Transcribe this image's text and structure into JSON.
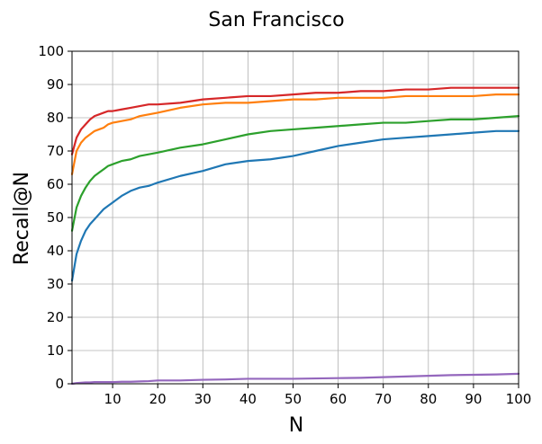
{
  "chart_data": {
    "type": "line",
    "title": "San Francisco",
    "xlabel": "N",
    "ylabel": "Recall@N",
    "xlim": [
      1,
      100
    ],
    "ylim": [
      0,
      100
    ],
    "xticks": [
      10,
      20,
      30,
      40,
      50,
      60,
      70,
      80,
      90,
      100
    ],
    "yticks": [
      0,
      10,
      20,
      30,
      40,
      50,
      60,
      70,
      80,
      90,
      100
    ],
    "grid": true,
    "x": [
      1,
      2,
      3,
      4,
      5,
      6,
      7,
      8,
      9,
      10,
      12,
      14,
      16,
      18,
      20,
      25,
      30,
      35,
      40,
      45,
      50,
      55,
      60,
      65,
      70,
      75,
      80,
      85,
      90,
      95,
      100
    ],
    "series": [
      {
        "color": "#1f77b4",
        "values": [
          31,
          39,
          43,
          46,
          48,
          49.5,
          51,
          52.5,
          53.5,
          54.5,
          56.5,
          58,
          59,
          59.5,
          60.5,
          62.5,
          64,
          66,
          67,
          67.5,
          68.5,
          70,
          71.5,
          72.5,
          73.5,
          74,
          74.5,
          75,
          75.5,
          76,
          76
        ]
      },
      {
        "color": "#2ca02c",
        "values": [
          46,
          53,
          56.5,
          59,
          61,
          62.5,
          63.5,
          64.5,
          65.5,
          66,
          67,
          67.5,
          68.5,
          69,
          69.5,
          71,
          72,
          73.5,
          75,
          76,
          76.5,
          77,
          77.5,
          78,
          78.5,
          78.5,
          79,
          79.5,
          79.5,
          80,
          80.5
        ]
      },
      {
        "color": "#ff7f0e",
        "values": [
          63,
          70,
          72.5,
          74,
          75,
          76,
          76.5,
          77,
          78,
          78.5,
          79,
          79.5,
          80.5,
          81,
          81.5,
          83,
          84,
          84.5,
          84.5,
          85,
          85.5,
          85.5,
          86,
          86,
          86,
          86.5,
          86.5,
          86.5,
          86.5,
          87,
          87
        ]
      },
      {
        "color": "#d62728",
        "values": [
          69,
          74,
          76.5,
          78,
          79.5,
          80.5,
          81,
          81.5,
          82,
          82,
          82.5,
          83,
          83.5,
          84,
          84,
          84.5,
          85.5,
          86,
          86.5,
          86.5,
          87,
          87.5,
          87.5,
          88,
          88,
          88.5,
          88.5,
          89,
          89,
          89,
          89
        ]
      },
      {
        "color": "#9467bd",
        "values": [
          0,
          0.2,
          0.3,
          0.4,
          0.4,
          0.5,
          0.5,
          0.5,
          0.5,
          0.5,
          0.6,
          0.6,
          0.7,
          0.8,
          1,
          1,
          1.2,
          1.3,
          1.5,
          1.5,
          1.5,
          1.6,
          1.7,
          1.8,
          2,
          2.2,
          2.4,
          2.6,
          2.7,
          2.8,
          3
        ]
      }
    ]
  }
}
